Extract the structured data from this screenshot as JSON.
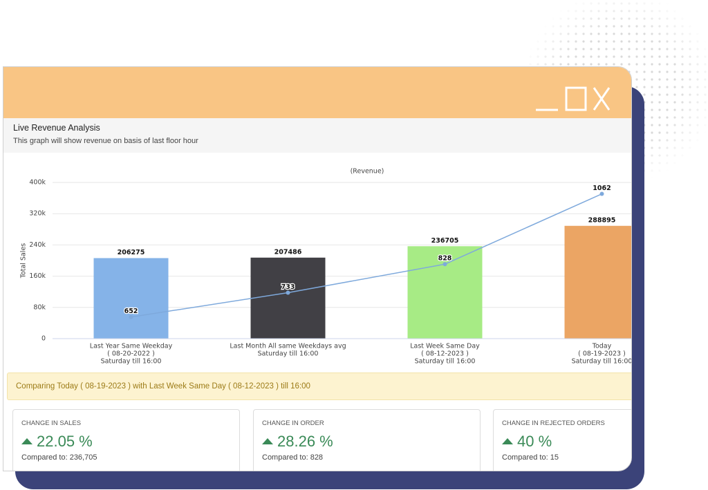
{
  "window": {
    "title": "Live Revenue Analysis",
    "subtitle": "This graph will show revenue on basis of last floor hour"
  },
  "chart_data": {
    "type": "bar",
    "title": "(Revenue)",
    "y_label": "Total Sales",
    "categories": [
      [
        "Last Year Same Weekday",
        "( 08-20-2022 )",
        "Saturday till 16:00"
      ],
      [
        "Last Month All same Weekdays avg",
        "Saturday till 16:00"
      ],
      [
        "Last Week Same Day",
        "( 08-12-2023 )",
        "Saturday till 16:00"
      ],
      [
        "Today",
        "( 08-19-2023 )",
        "Saturday till 16:00"
      ]
    ],
    "values": [
      206275,
      207486,
      236705,
      288895
    ],
    "colors": [
      "#85b3e8",
      "#414045",
      "#a7eb85",
      "#eba564"
    ],
    "line_values": [
      652,
      733,
      828,
      1062
    ],
    "line_color": "#7ea9dc",
    "line_axis": "y2",
    "ylim": [
      0,
      400000
    ],
    "yticks": [
      0,
      {
        "value": 80000,
        "label": "80k"
      },
      {
        "value": 160000,
        "label": "160k"
      },
      {
        "value": 240000,
        "label": "240k"
      },
      {
        "value": 320000,
        "label": "320k"
      },
      {
        "value": 400000,
        "label": "400k"
      }
    ],
    "y2lim": [
      580,
      1100
    ],
    "grid": true
  },
  "banner": "Comparing Today ( 08-19-2023 ) with Last Week Same Day ( 08-12-2023 ) till 16:00",
  "cards": [
    {
      "label": "CHANGE IN SALES",
      "value": "22.05 %",
      "compared": "Compared to: 236,705"
    },
    {
      "label": "CHANGE IN ORDER",
      "value": "28.26 %",
      "compared": "Compared to: 828"
    },
    {
      "label": "CHANGE IN REJECTED ORDERS",
      "value": "40 %",
      "compared": "Compared to: 15"
    }
  ]
}
